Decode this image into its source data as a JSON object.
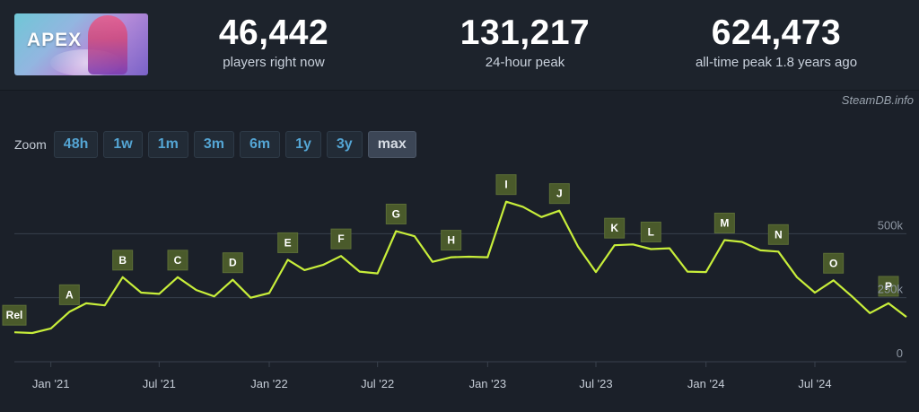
{
  "header": {
    "game_logo": "APEX",
    "stats": [
      {
        "value": "46,442",
        "label": "players right now"
      },
      {
        "value": "131,217",
        "label": "24-hour peak"
      },
      {
        "value": "624,473",
        "label": "all-time peak 1.8 years ago"
      }
    ],
    "credit": "SteamDB.info"
  },
  "zoom": {
    "label": "Zoom",
    "options": [
      "48h",
      "1w",
      "1m",
      "3m",
      "6m",
      "1y",
      "3y",
      "max"
    ],
    "selected": "max"
  },
  "colors": {
    "line": "#c8ee3a",
    "flag": "#4a5a2b",
    "grid": "#39414d",
    "link": "#54a5d4"
  },
  "chart_data": {
    "type": "line",
    "title": "",
    "xlabel": "",
    "ylabel": "",
    "x_ticks": [
      "Jan '21",
      "Jul '21",
      "Jan '22",
      "Jul '22",
      "Jan '23",
      "Jul '23",
      "Jan '24",
      "Jul '24"
    ],
    "y_ticks": [
      "0",
      "250k",
      "500k"
    ],
    "ylim": [
      0,
      750000
    ],
    "grid": true,
    "series": [
      {
        "points": [
          [
            "2020-11-01",
            115000
          ],
          [
            "2020-12-01",
            112000
          ],
          [
            "2021-01-01",
            130000
          ],
          [
            "2021-02-01",
            195000
          ],
          [
            "2021-03-01",
            228000
          ],
          [
            "2021-04-01",
            220000
          ],
          [
            "2021-05-01",
            330000
          ],
          [
            "2021-06-01",
            270000
          ],
          [
            "2021-07-01",
            265000
          ],
          [
            "2021-08-01",
            330000
          ],
          [
            "2021-09-01",
            280000
          ],
          [
            "2021-10-01",
            255000
          ],
          [
            "2021-11-01",
            320000
          ],
          [
            "2021-12-01",
            250000
          ],
          [
            "2022-01-01",
            268000
          ],
          [
            "2022-02-01",
            398000
          ],
          [
            "2022-03-01",
            358000
          ],
          [
            "2022-04-01",
            378000
          ],
          [
            "2022-05-01",
            413000
          ],
          [
            "2022-06-01",
            352000
          ],
          [
            "2022-07-01",
            345000
          ],
          [
            "2022-08-01",
            510000
          ],
          [
            "2022-09-01",
            490000
          ],
          [
            "2022-10-01",
            390000
          ],
          [
            "2022-11-01",
            408000
          ],
          [
            "2022-12-01",
            410000
          ],
          [
            "2023-01-01",
            408000
          ],
          [
            "2023-02-01",
            625000
          ],
          [
            "2023-03-01",
            605000
          ],
          [
            "2023-04-01",
            565000
          ],
          [
            "2023-05-01",
            590000
          ],
          [
            "2023-06-01",
            450000
          ],
          [
            "2023-07-01",
            350000
          ],
          [
            "2023-08-01",
            455000
          ],
          [
            "2023-09-01",
            458000
          ],
          [
            "2023-10-01",
            440000
          ],
          [
            "2023-11-01",
            443000
          ],
          [
            "2023-12-01",
            352000
          ],
          [
            "2024-01-01",
            350000
          ],
          [
            "2024-02-01",
            475000
          ],
          [
            "2024-03-01",
            468000
          ],
          [
            "2024-04-01",
            435000
          ],
          [
            "2024-05-01",
            430000
          ],
          [
            "2024-06-01",
            330000
          ],
          [
            "2024-07-01",
            270000
          ],
          [
            "2024-08-01",
            318000
          ],
          [
            "2024-09-01",
            255000
          ],
          [
            "2024-10-01",
            190000
          ],
          [
            "2024-11-01",
            228000
          ],
          [
            "2024-12-01",
            175000
          ]
        ]
      }
    ],
    "annotations": [
      {
        "label": "Rel",
        "date": "2020-11-01",
        "value": 115000
      },
      {
        "label": "A",
        "date": "2021-02-01",
        "value": 195000
      },
      {
        "label": "B",
        "date": "2021-05-01",
        "value": 330000
      },
      {
        "label": "C",
        "date": "2021-08-01",
        "value": 330000
      },
      {
        "label": "D",
        "date": "2021-11-01",
        "value": 320000
      },
      {
        "label": "E",
        "date": "2022-02-01",
        "value": 398000
      },
      {
        "label": "F",
        "date": "2022-05-01",
        "value": 413000
      },
      {
        "label": "G",
        "date": "2022-08-01",
        "value": 510000
      },
      {
        "label": "H",
        "date": "2022-11-01",
        "value": 408000
      },
      {
        "label": "I",
        "date": "2023-02-01",
        "value": 625000
      },
      {
        "label": "J",
        "date": "2023-05-01",
        "value": 590000
      },
      {
        "label": "K",
        "date": "2023-08-01",
        "value": 455000
      },
      {
        "label": "L",
        "date": "2023-10-01",
        "value": 440000
      },
      {
        "label": "M",
        "date": "2024-02-01",
        "value": 475000
      },
      {
        "label": "N",
        "date": "2024-05-01",
        "value": 430000
      },
      {
        "label": "O",
        "date": "2024-08-01",
        "value": 318000
      },
      {
        "label": "P",
        "date": "2024-11-01",
        "value": 228000
      }
    ]
  }
}
